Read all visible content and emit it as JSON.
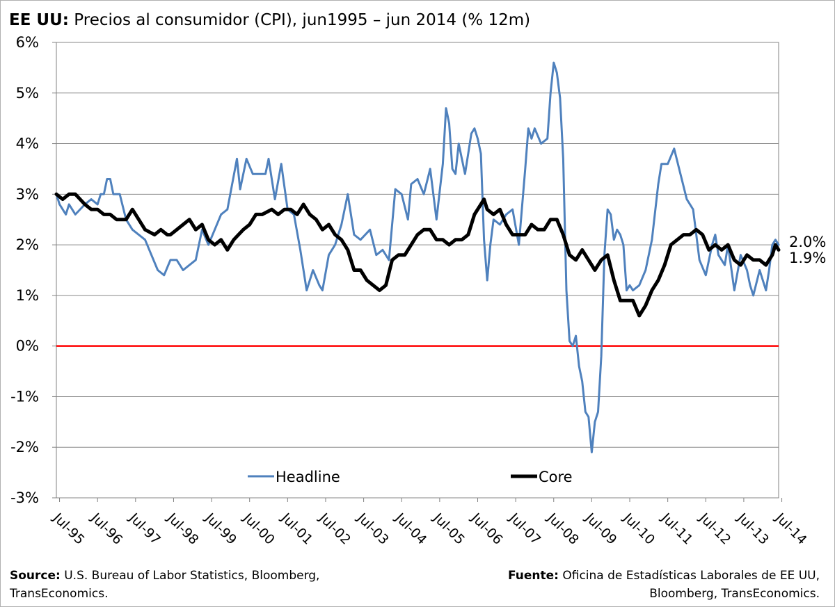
{
  "title": {
    "bold": "EE UU:",
    "text": "Precios al consumidor (CPI), jun1995 – jun 2014 (% 12m)"
  },
  "source_left": {
    "bold": "Source:",
    "text": "U.S. Bureau of Labor Statistics, Bloomberg, TransEconomics."
  },
  "source_right": {
    "bold": "Fuente:",
    "text": "Oficina de Estadísticas Laborales de EE UU, Bloomberg, TransEconomics."
  },
  "chart_data": {
    "type": "line",
    "ylim": [
      -3,
      6
    ],
    "yticks": [
      -3,
      -2,
      -1,
      0,
      1,
      2,
      3,
      4,
      5,
      6
    ],
    "ytick_labels": [
      "-3%",
      "-2%",
      "-1%",
      "0%",
      "1%",
      "2%",
      "3%",
      "4%",
      "5%",
      "6%"
    ],
    "x_start": "1995-06",
    "x_end": "2014-06",
    "xtick_labels": [
      "Jul-95",
      "Jul-96",
      "Jul-97",
      "Jul-98",
      "Jul-99",
      "Jul-00",
      "Jul-01",
      "Jul-02",
      "Jul-03",
      "Jul-04",
      "Jul-05",
      "Jul-06",
      "Jul-07",
      "Jul-08",
      "Jul-09",
      "Jul-10",
      "Jul-11",
      "Jul-12",
      "Jul-13",
      "Jul-14"
    ],
    "grid": true,
    "zero_line_color": "#ff0000",
    "legend_position": "bottom",
    "end_labels": [
      "2.0%",
      "1.9%"
    ],
    "series": [
      {
        "name": "Headline",
        "color": "#4f81bd",
        "points": [
          [
            "1995-06",
            3.0
          ],
          [
            "1995-07",
            2.8
          ],
          [
            "1995-09",
            2.6
          ],
          [
            "1995-10",
            2.8
          ],
          [
            "1995-12",
            2.6
          ],
          [
            "1996-03",
            2.8
          ],
          [
            "1996-05",
            2.9
          ],
          [
            "1996-07",
            2.8
          ],
          [
            "1996-08",
            3.0
          ],
          [
            "1996-09",
            3.0
          ],
          [
            "1996-10",
            3.3
          ],
          [
            "1996-11",
            3.3
          ],
          [
            "1996-12",
            3.0
          ],
          [
            "1997-02",
            3.0
          ],
          [
            "1997-04",
            2.5
          ],
          [
            "1997-06",
            2.3
          ],
          [
            "1997-08",
            2.2
          ],
          [
            "1997-10",
            2.1
          ],
          [
            "1997-12",
            1.8
          ],
          [
            "1998-02",
            1.5
          ],
          [
            "1998-04",
            1.4
          ],
          [
            "1998-06",
            1.7
          ],
          [
            "1998-08",
            1.7
          ],
          [
            "1998-10",
            1.5
          ],
          [
            "1998-12",
            1.6
          ],
          [
            "1999-02",
            1.7
          ],
          [
            "1999-04",
            2.3
          ],
          [
            "1999-06",
            2.0
          ],
          [
            "1999-08",
            2.3
          ],
          [
            "1999-10",
            2.6
          ],
          [
            "1999-12",
            2.7
          ],
          [
            "2000-03",
            3.7
          ],
          [
            "2000-04",
            3.1
          ],
          [
            "2000-06",
            3.7
          ],
          [
            "2000-08",
            3.4
          ],
          [
            "2000-10",
            3.4
          ],
          [
            "2000-12",
            3.4
          ],
          [
            "2001-01",
            3.7
          ],
          [
            "2001-03",
            2.9
          ],
          [
            "2001-05",
            3.6
          ],
          [
            "2001-07",
            2.7
          ],
          [
            "2001-09",
            2.6
          ],
          [
            "2001-11",
            1.9
          ],
          [
            "2002-01",
            1.1
          ],
          [
            "2002-03",
            1.5
          ],
          [
            "2002-05",
            1.2
          ],
          [
            "2002-06",
            1.1
          ],
          [
            "2002-08",
            1.8
          ],
          [
            "2002-10",
            2.0
          ],
          [
            "2002-12",
            2.4
          ],
          [
            "2003-02",
            3.0
          ],
          [
            "2003-04",
            2.2
          ],
          [
            "2003-06",
            2.1
          ],
          [
            "2003-09",
            2.3
          ],
          [
            "2003-11",
            1.8
          ],
          [
            "2004-01",
            1.9
          ],
          [
            "2004-03",
            1.7
          ],
          [
            "2004-05",
            3.1
          ],
          [
            "2004-07",
            3.0
          ],
          [
            "2004-09",
            2.5
          ],
          [
            "2004-10",
            3.2
          ],
          [
            "2004-12",
            3.3
          ],
          [
            "2005-02",
            3.0
          ],
          [
            "2005-04",
            3.5
          ],
          [
            "2005-06",
            2.5
          ],
          [
            "2005-08",
            3.6
          ],
          [
            "2005-09",
            4.7
          ],
          [
            "2005-10",
            4.4
          ],
          [
            "2005-11",
            3.5
          ],
          [
            "2005-12",
            3.4
          ],
          [
            "2006-01",
            4.0
          ],
          [
            "2006-03",
            3.4
          ],
          [
            "2006-05",
            4.2
          ],
          [
            "2006-06",
            4.3
          ],
          [
            "2006-07",
            4.1
          ],
          [
            "2006-08",
            3.8
          ],
          [
            "2006-09",
            2.1
          ],
          [
            "2006-10",
            1.3
          ],
          [
            "2006-11",
            2.0
          ],
          [
            "2006-12",
            2.5
          ],
          [
            "2007-02",
            2.4
          ],
          [
            "2007-04",
            2.6
          ],
          [
            "2007-06",
            2.7
          ],
          [
            "2007-08",
            2.0
          ],
          [
            "2007-10",
            3.5
          ],
          [
            "2007-11",
            4.3
          ],
          [
            "2007-12",
            4.1
          ],
          [
            "2008-01",
            4.3
          ],
          [
            "2008-03",
            4.0
          ],
          [
            "2008-05",
            4.1
          ],
          [
            "2008-06",
            5.0
          ],
          [
            "2008-07",
            5.6
          ],
          [
            "2008-08",
            5.4
          ],
          [
            "2008-09",
            4.9
          ],
          [
            "2008-10",
            3.7
          ],
          [
            "2008-11",
            1.1
          ],
          [
            "2008-12",
            0.1
          ],
          [
            "2009-01",
            0.0
          ],
          [
            "2009-02",
            0.2
          ],
          [
            "2009-03",
            -0.4
          ],
          [
            "2009-04",
            -0.7
          ],
          [
            "2009-05",
            -1.3
          ],
          [
            "2009-06",
            -1.4
          ],
          [
            "2009-07",
            -2.1
          ],
          [
            "2009-08",
            -1.5
          ],
          [
            "2009-09",
            -1.3
          ],
          [
            "2009-10",
            -0.2
          ],
          [
            "2009-11",
            1.8
          ],
          [
            "2009-12",
            2.7
          ],
          [
            "2010-01",
            2.6
          ],
          [
            "2010-02",
            2.1
          ],
          [
            "2010-03",
            2.3
          ],
          [
            "2010-04",
            2.2
          ],
          [
            "2010-05",
            2.0
          ],
          [
            "2010-06",
            1.1
          ],
          [
            "2010-07",
            1.2
          ],
          [
            "2010-08",
            1.1
          ],
          [
            "2010-10",
            1.2
          ],
          [
            "2010-12",
            1.5
          ],
          [
            "2011-02",
            2.1
          ],
          [
            "2011-04",
            3.2
          ],
          [
            "2011-05",
            3.6
          ],
          [
            "2011-07",
            3.6
          ],
          [
            "2011-09",
            3.9
          ],
          [
            "2011-11",
            3.4
          ],
          [
            "2012-01",
            2.9
          ],
          [
            "2012-03",
            2.7
          ],
          [
            "2012-05",
            1.7
          ],
          [
            "2012-07",
            1.4
          ],
          [
            "2012-09",
            2.0
          ],
          [
            "2012-10",
            2.2
          ],
          [
            "2012-11",
            1.8
          ],
          [
            "2013-01",
            1.6
          ],
          [
            "2013-02",
            2.0
          ],
          [
            "2013-04",
            1.1
          ],
          [
            "2013-06",
            1.8
          ],
          [
            "2013-08",
            1.5
          ],
          [
            "2013-09",
            1.2
          ],
          [
            "2013-10",
            1.0
          ],
          [
            "2013-12",
            1.5
          ],
          [
            "2014-02",
            1.1
          ],
          [
            "2014-03",
            1.5
          ],
          [
            "2014-04",
            2.0
          ],
          [
            "2014-05",
            2.1
          ],
          [
            "2014-06",
            2.0
          ]
        ]
      },
      {
        "name": "Core",
        "color": "#000000",
        "points": [
          [
            "1995-06",
            3.0
          ],
          [
            "1995-08",
            2.9
          ],
          [
            "1995-10",
            3.0
          ],
          [
            "1995-12",
            3.0
          ],
          [
            "1996-03",
            2.8
          ],
          [
            "1996-05",
            2.7
          ],
          [
            "1996-07",
            2.7
          ],
          [
            "1996-09",
            2.6
          ],
          [
            "1996-11",
            2.6
          ],
          [
            "1997-01",
            2.5
          ],
          [
            "1997-04",
            2.5
          ],
          [
            "1997-06",
            2.7
          ],
          [
            "1997-08",
            2.5
          ],
          [
            "1997-10",
            2.3
          ],
          [
            "1998-01",
            2.2
          ],
          [
            "1998-03",
            2.3
          ],
          [
            "1998-05",
            2.2
          ],
          [
            "1998-06",
            2.2
          ],
          [
            "1998-08",
            2.3
          ],
          [
            "1998-10",
            2.4
          ],
          [
            "1998-12",
            2.5
          ],
          [
            "1999-02",
            2.3
          ],
          [
            "1999-04",
            2.4
          ],
          [
            "1999-06",
            2.1
          ],
          [
            "1999-08",
            2.0
          ],
          [
            "1999-10",
            2.1
          ],
          [
            "1999-12",
            1.9
          ],
          [
            "2000-02",
            2.1
          ],
          [
            "2000-05",
            2.3
          ],
          [
            "2000-07",
            2.4
          ],
          [
            "2000-09",
            2.6
          ],
          [
            "2000-11",
            2.6
          ],
          [
            "2001-02",
            2.7
          ],
          [
            "2001-04",
            2.6
          ],
          [
            "2001-06",
            2.7
          ],
          [
            "2001-08",
            2.7
          ],
          [
            "2001-10",
            2.6
          ],
          [
            "2001-12",
            2.8
          ],
          [
            "2002-02",
            2.6
          ],
          [
            "2002-04",
            2.5
          ],
          [
            "2002-06",
            2.3
          ],
          [
            "2002-08",
            2.4
          ],
          [
            "2002-10",
            2.2
          ],
          [
            "2002-12",
            2.1
          ],
          [
            "2003-02",
            1.9
          ],
          [
            "2003-04",
            1.5
          ],
          [
            "2003-06",
            1.5
          ],
          [
            "2003-08",
            1.3
          ],
          [
            "2003-10",
            1.2
          ],
          [
            "2003-12",
            1.1
          ],
          [
            "2004-02",
            1.2
          ],
          [
            "2004-04",
            1.7
          ],
          [
            "2004-06",
            1.8
          ],
          [
            "2004-08",
            1.8
          ],
          [
            "2004-10",
            2.0
          ],
          [
            "2004-12",
            2.2
          ],
          [
            "2005-02",
            2.3
          ],
          [
            "2005-04",
            2.3
          ],
          [
            "2005-06",
            2.1
          ],
          [
            "2005-08",
            2.1
          ],
          [
            "2005-10",
            2.0
          ],
          [
            "2005-12",
            2.1
          ],
          [
            "2006-02",
            2.1
          ],
          [
            "2006-04",
            2.2
          ],
          [
            "2006-06",
            2.6
          ],
          [
            "2006-08",
            2.8
          ],
          [
            "2006-09",
            2.9
          ],
          [
            "2006-10",
            2.7
          ],
          [
            "2006-12",
            2.6
          ],
          [
            "2007-02",
            2.7
          ],
          [
            "2007-04",
            2.4
          ],
          [
            "2007-06",
            2.2
          ],
          [
            "2007-08",
            2.2
          ],
          [
            "2007-10",
            2.2
          ],
          [
            "2007-12",
            2.4
          ],
          [
            "2008-02",
            2.3
          ],
          [
            "2008-04",
            2.3
          ],
          [
            "2008-06",
            2.5
          ],
          [
            "2008-08",
            2.5
          ],
          [
            "2008-10",
            2.2
          ],
          [
            "2008-12",
            1.8
          ],
          [
            "2009-02",
            1.7
          ],
          [
            "2009-04",
            1.9
          ],
          [
            "2009-06",
            1.7
          ],
          [
            "2009-08",
            1.5
          ],
          [
            "2009-10",
            1.7
          ],
          [
            "2009-12",
            1.8
          ],
          [
            "2010-02",
            1.3
          ],
          [
            "2010-04",
            0.9
          ],
          [
            "2010-06",
            0.9
          ],
          [
            "2010-08",
            0.9
          ],
          [
            "2010-10",
            0.6
          ],
          [
            "2010-12",
            0.8
          ],
          [
            "2011-02",
            1.1
          ],
          [
            "2011-04",
            1.3
          ],
          [
            "2011-06",
            1.6
          ],
          [
            "2011-08",
            2.0
          ],
          [
            "2011-10",
            2.1
          ],
          [
            "2011-12",
            2.2
          ],
          [
            "2012-02",
            2.2
          ],
          [
            "2012-04",
            2.3
          ],
          [
            "2012-06",
            2.2
          ],
          [
            "2012-08",
            1.9
          ],
          [
            "2012-10",
            2.0
          ],
          [
            "2012-12",
            1.9
          ],
          [
            "2013-02",
            2.0
          ],
          [
            "2013-04",
            1.7
          ],
          [
            "2013-06",
            1.6
          ],
          [
            "2013-08",
            1.8
          ],
          [
            "2013-10",
            1.7
          ],
          [
            "2013-12",
            1.7
          ],
          [
            "2014-02",
            1.6
          ],
          [
            "2014-03",
            1.7
          ],
          [
            "2014-04",
            1.8
          ],
          [
            "2014-05",
            2.0
          ],
          [
            "2014-06",
            1.9
          ]
        ]
      }
    ]
  }
}
